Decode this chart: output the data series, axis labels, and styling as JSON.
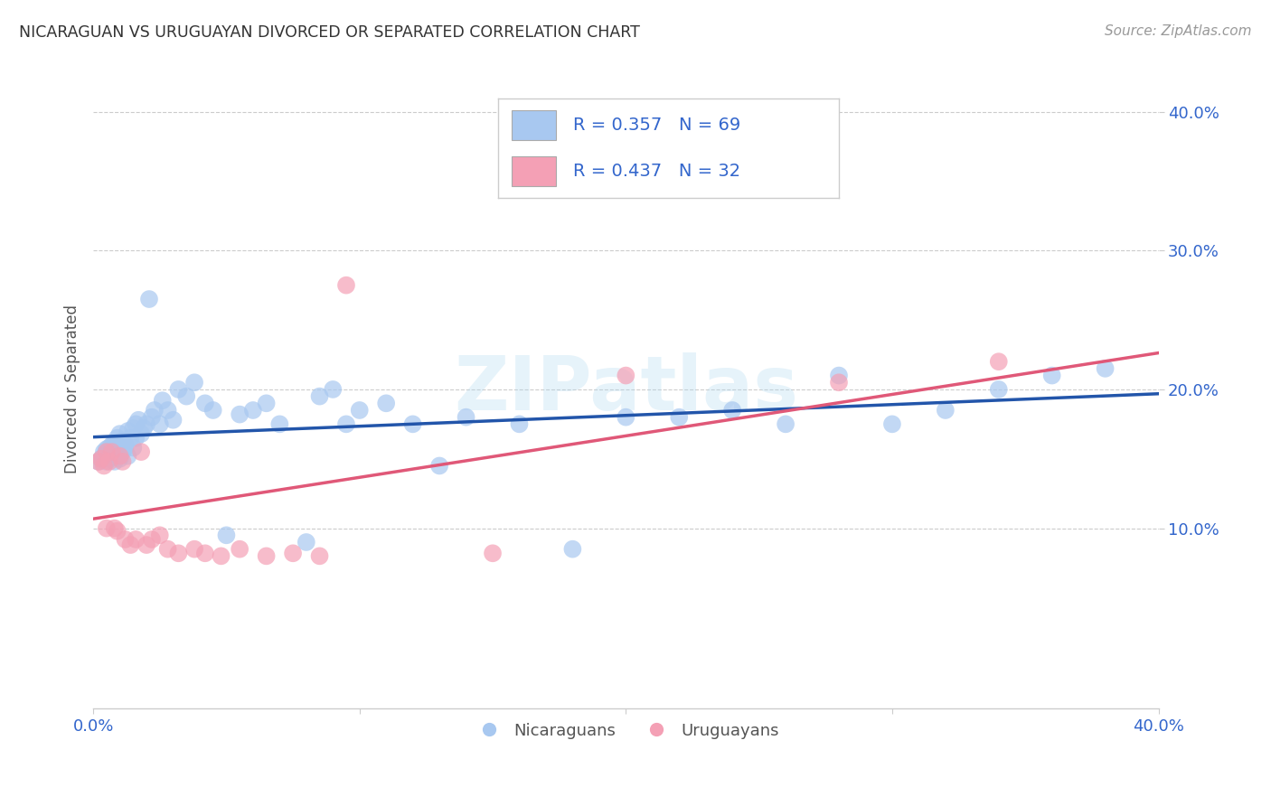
{
  "title": "NICARAGUAN VS URUGUAYAN DIVORCED OR SEPARATED CORRELATION CHART",
  "source": "Source: ZipAtlas.com",
  "ylabel": "Divorced or Separated",
  "xlim": [
    0.0,
    0.4
  ],
  "ylim": [
    -0.03,
    0.43
  ],
  "nicaraguan_color": "#A8C8F0",
  "uruguayan_color": "#F4A0B5",
  "trendline_blue": "#2255AA",
  "trendline_pink": "#E05878",
  "watermark": "ZIPatlas",
  "nicaraguans_R": 0.357,
  "uruguayans_R": 0.437,
  "nicaraguan_x": [
    0.002,
    0.003,
    0.004,
    0.004,
    0.005,
    0.005,
    0.006,
    0.006,
    0.007,
    0.007,
    0.008,
    0.008,
    0.009,
    0.009,
    0.01,
    0.01,
    0.011,
    0.011,
    0.012,
    0.012,
    0.013,
    0.013,
    0.014,
    0.015,
    0.015,
    0.016,
    0.016,
    0.017,
    0.018,
    0.019,
    0.02,
    0.021,
    0.022,
    0.023,
    0.025,
    0.026,
    0.028,
    0.03,
    0.032,
    0.035,
    0.038,
    0.042,
    0.045,
    0.05,
    0.055,
    0.06,
    0.065,
    0.07,
    0.08,
    0.085,
    0.09,
    0.095,
    0.1,
    0.11,
    0.12,
    0.13,
    0.14,
    0.16,
    0.18,
    0.2,
    0.22,
    0.24,
    0.26,
    0.28,
    0.3,
    0.32,
    0.34,
    0.36,
    0.38
  ],
  "nicaraguan_y": [
    0.148,
    0.15,
    0.152,
    0.155,
    0.148,
    0.157,
    0.15,
    0.158,
    0.152,
    0.16,
    0.148,
    0.162,
    0.155,
    0.165,
    0.15,
    0.168,
    0.155,
    0.163,
    0.158,
    0.16,
    0.152,
    0.17,
    0.165,
    0.172,
    0.158,
    0.175,
    0.165,
    0.178,
    0.168,
    0.172,
    0.175,
    0.265,
    0.18,
    0.185,
    0.175,
    0.192,
    0.185,
    0.178,
    0.2,
    0.195,
    0.205,
    0.19,
    0.185,
    0.095,
    0.182,
    0.185,
    0.19,
    0.175,
    0.09,
    0.195,
    0.2,
    0.175,
    0.185,
    0.19,
    0.175,
    0.145,
    0.18,
    0.175,
    0.085,
    0.18,
    0.18,
    0.185,
    0.175,
    0.21,
    0.175,
    0.185,
    0.2,
    0.21,
    0.215
  ],
  "uruguayan_x": [
    0.002,
    0.003,
    0.004,
    0.005,
    0.005,
    0.006,
    0.007,
    0.008,
    0.009,
    0.01,
    0.011,
    0.012,
    0.014,
    0.016,
    0.018,
    0.02,
    0.022,
    0.025,
    0.028,
    0.032,
    0.038,
    0.042,
    0.048,
    0.055,
    0.065,
    0.075,
    0.085,
    0.095,
    0.15,
    0.2,
    0.28,
    0.34
  ],
  "uruguayan_y": [
    0.148,
    0.15,
    0.145,
    0.1,
    0.155,
    0.148,
    0.155,
    0.1,
    0.098,
    0.152,
    0.148,
    0.092,
    0.088,
    0.092,
    0.155,
    0.088,
    0.092,
    0.095,
    0.085,
    0.082,
    0.085,
    0.082,
    0.08,
    0.085,
    0.08,
    0.082,
    0.08,
    0.275,
    0.082,
    0.21,
    0.205,
    0.22
  ]
}
